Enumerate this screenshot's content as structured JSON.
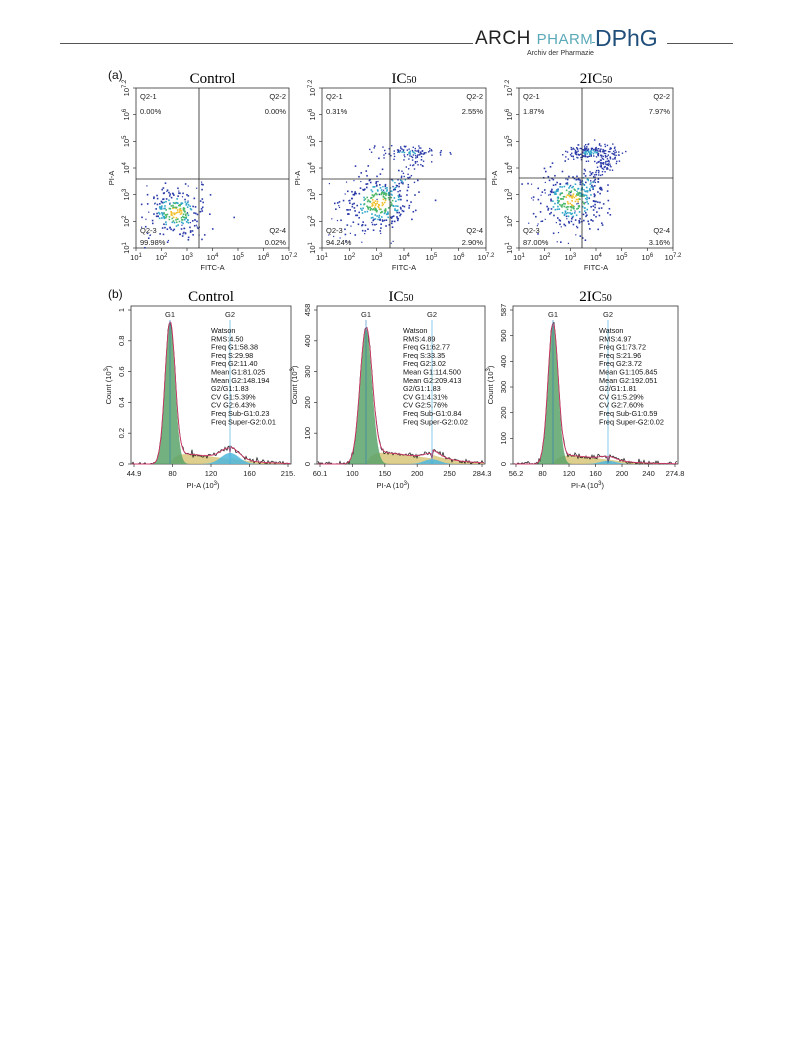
{
  "header": {
    "logo_arch": "ARCH",
    "logo_pharm": "PHARM",
    "logo_sub": "Archiv der Pharmazie",
    "logo_dphg": "DPhG"
  },
  "panel_a": {
    "label": "(a)",
    "x_label": "FITC-A",
    "y_label": "PI-A",
    "x_ticks": [
      "10 1",
      "10 2",
      "10 3",
      "10 4",
      "10 5",
      "10 6",
      "10 7.2"
    ],
    "y_ticks": [
      "10 1",
      "10 2",
      "10 3",
      "10 4",
      "10 5",
      "10 6",
      "10 7.2"
    ],
    "plots": [
      {
        "title": "Control",
        "q1": "Q2-1",
        "q2": "Q2-2",
        "q3": "Q2-3",
        "q4": "Q2-4",
        "v1": "0.00%",
        "v2": "0.00%",
        "v3": "99.98%",
        "v4": "0.02%"
      },
      {
        "title": "IC50",
        "q1": "Q2-1",
        "q2": "Q2-2",
        "q3": "Q2-3",
        "q4": "Q2-4",
        "v1": "0.31%",
        "v2": "2.55%",
        "v3": "94.24%",
        "v4": "2.90%"
      },
      {
        "title": "2IC50",
        "q1": "Q2-1",
        "q2": "Q2-2",
        "q3": "Q2-3",
        "q4": "Q2-4",
        "v1": "1.87%",
        "v2": "7.97%",
        "v3": "87.00%",
        "v4": "3.16%"
      }
    ]
  },
  "panel_b": {
    "label": "(b)",
    "x_label": "PI-A (10 3)",
    "y_label": "Count (10 3)",
    "plots": [
      {
        "title": "Control",
        "peak1": "G1",
        "peak2": "G2",
        "x_ticks": [
          "44.9",
          "80",
          "120",
          "160",
          "215."
        ],
        "y_ticks": [
          "0",
          "0.2",
          "0.4",
          "0.6",
          "0.8",
          "1"
        ],
        "info": [
          "Watson",
          "RMS:4.50",
          "Freq G1:58.38",
          "Freq S:29.98",
          "Freq G2:11.40",
          "Mean G1:81.025",
          "Mean G2:148.194",
          "G2/G1:1.83",
          "CV G1:5.39%",
          "CV G2:6.43%",
          "Freq Sub-G1:0.23",
          "Freq Super-G2:0.01"
        ]
      },
      {
        "title": "IC50",
        "peak1": "G1",
        "peak2": "G2",
        "x_ticks": [
          "60.1",
          "100",
          "150",
          "200",
          "250",
          "284.3"
        ],
        "y_ticks": [
          "0",
          "100",
          "200",
          "300",
          "400",
          "458"
        ],
        "info": [
          "Watson",
          "RMS:4.89",
          "Freq G1:62.77",
          "Freq S:33.35",
          "Freq G2:3.02",
          "Mean G1:114.500",
          "Mean G2:209.413",
          "G2/G1:1.83",
          "CV G1:4.31%",
          "CV G2:5.76%",
          "Freq Sub-G1:0.84",
          "Freq Super-G2:0.02"
        ]
      },
      {
        "title": "2IC50",
        "peak1": "G1",
        "peak2": "G2",
        "x_ticks": [
          "56.2",
          "80",
          "120",
          "160",
          "200",
          "240",
          "274.8"
        ],
        "y_ticks": [
          "0",
          "100",
          "200",
          "300",
          "400",
          "500",
          "587"
        ],
        "info": [
          "Watson",
          "RMS:4.97",
          "Freq G1:73.72",
          "Freq S:21.96",
          "Freq G2:3.72",
          "Mean G1:105.845",
          "Mean G2:192.051",
          "G2/G1:1.81",
          "CV G1:5.29%",
          "CV G2:7.60%",
          "Freq Sub-G1:0.59",
          "Freq Super-G2:0.02"
        ]
      }
    ]
  },
  "colors": {
    "g1_fill": "#5aa36a",
    "s_fill": "#d9c77a",
    "g2_fill": "#4fb7dd",
    "density_low": "#2a3aa8",
    "density_high": "#f2c12e"
  }
}
